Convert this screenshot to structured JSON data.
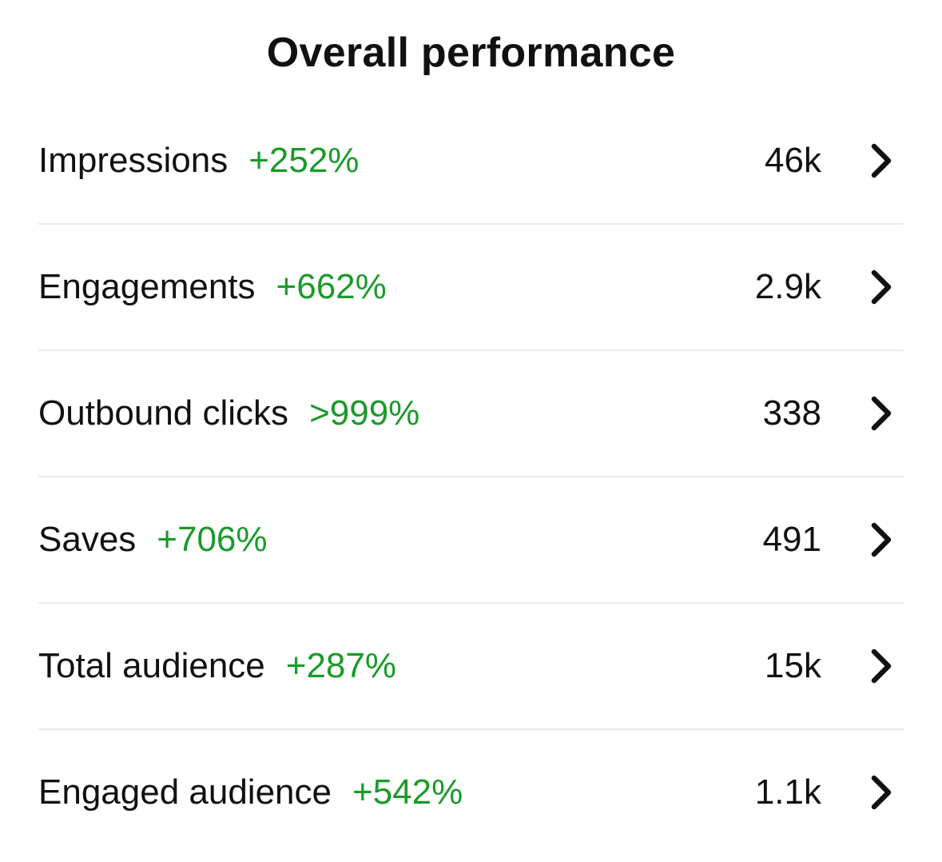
{
  "header": {
    "title": "Overall performance"
  },
  "colors": {
    "positive": "#1a9a2a",
    "text": "#111111",
    "divider": "#ebebeb"
  },
  "metrics": [
    {
      "label": "Impressions",
      "change": "+252%",
      "value": "46k",
      "icon": "chevron-right-icon"
    },
    {
      "label": "Engagements",
      "change": "+662%",
      "value": "2.9k",
      "icon": "chevron-right-icon"
    },
    {
      "label": "Outbound clicks",
      "change": ">999%",
      "value": "338",
      "icon": "chevron-right-icon"
    },
    {
      "label": "Saves",
      "change": "+706%",
      "value": "491",
      "icon": "chevron-right-icon"
    },
    {
      "label": "Total audience",
      "change": "+287%",
      "value": "15k",
      "icon": "chevron-right-icon"
    },
    {
      "label": "Engaged audience",
      "change": "+542%",
      "value": "1.1k",
      "icon": "chevron-right-icon"
    }
  ]
}
